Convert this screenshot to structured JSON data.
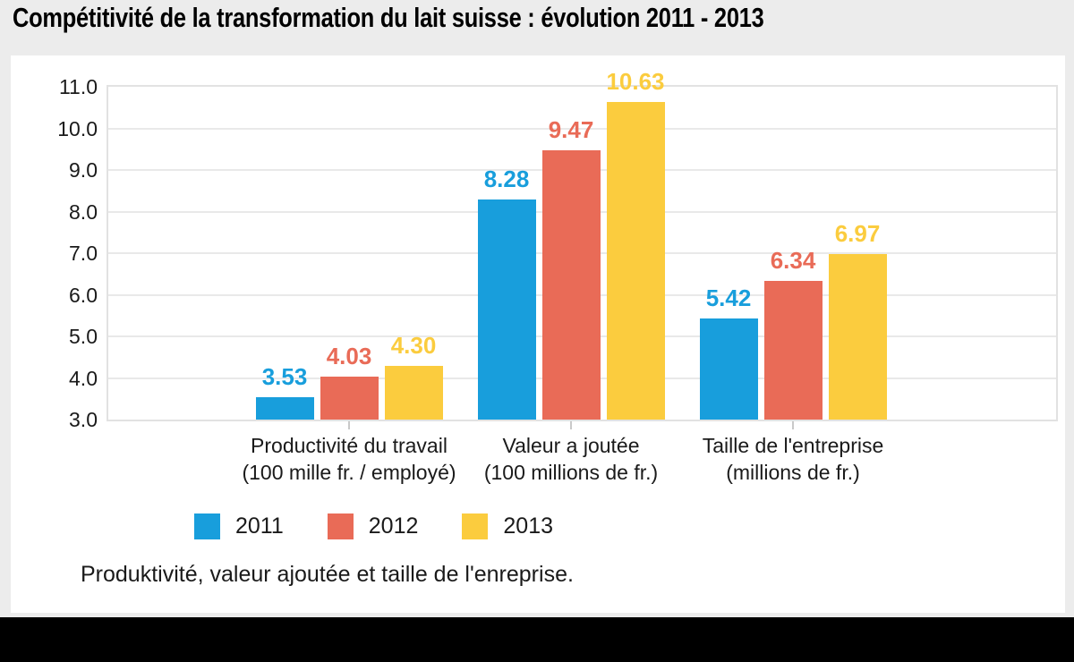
{
  "title": "Compétitivité de la transformation du lait suisse : évolution 2011 - 2013",
  "caption": "Produktivité, valeur ajoutée et taille de l'enreprise.",
  "chart_data": {
    "type": "bar",
    "title": "Compétitivité de la transformation du lait suisse : évolution 2011 - 2013",
    "categories": [
      {
        "label": "Productivité du travail",
        "sublabel": "(100 mille fr. / employé)"
      },
      {
        "label": "Valeur a joutée",
        "sublabel": "(100 millions de fr.)"
      },
      {
        "label": "Taille de l'entreprise",
        "sublabel": "(millions de fr.)"
      }
    ],
    "series": [
      {
        "name": "2011",
        "color": "#189EDC",
        "values": [
          3.53,
          8.28,
          5.42
        ]
      },
      {
        "name": "2012",
        "color": "#E96B57",
        "values": [
          4.03,
          9.47,
          6.34
        ]
      },
      {
        "name": "2013",
        "color": "#FBCC3E",
        "values": [
          4.3,
          10.63,
          6.97
        ]
      }
    ],
    "ylim": [
      3.0,
      11.0
    ],
    "y_ticks": [
      "11.0",
      "10.0",
      "9.0",
      "8.0",
      "7.0",
      "6.0",
      "5.0",
      "4.0",
      "3.0"
    ],
    "grid": "horizontal",
    "legend_position": "bottom-left",
    "value_label_format": "2-decimals"
  },
  "colors": {
    "background": "#ECECEC",
    "panel": "#FFFFFF",
    "footer": "#000000",
    "gridline": "#E9E9E9",
    "plot_border": "#E2E2E2",
    "text": "#1A1A1A"
  }
}
